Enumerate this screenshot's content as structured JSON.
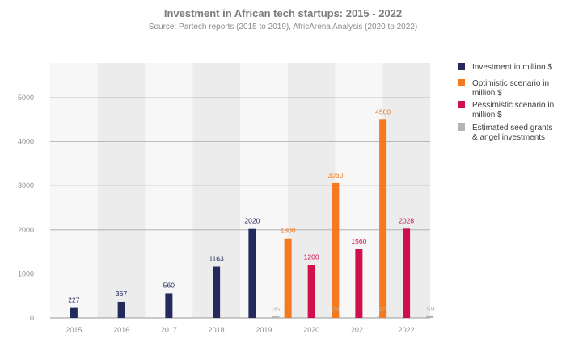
{
  "chart_data": {
    "type": "bar",
    "title": "Investment in African tech startups: 2015 - 2022",
    "subtitle": "Source: Partech reports (2015 to 2019), AfricArena Analysis (2020 to 2022)",
    "xlabel": "",
    "ylabel": "",
    "ylim": [
      0,
      5000
    ],
    "yticks": [
      0,
      1000,
      2000,
      3000,
      4000,
      5000
    ],
    "grid": true,
    "legend_position": "right",
    "categories": [
      "2015",
      "2016",
      "2017",
      "2018",
      "2019",
      "2020",
      "2021",
      "2022"
    ],
    "series": [
      {
        "name": "Investment in million $",
        "color": "#252a5c",
        "values": [
          227,
          367,
          560,
          1163,
          2020,
          null,
          null,
          null
        ],
        "labels": [
          "227",
          "367",
          "560",
          "1163",
          "2020",
          null,
          null,
          null
        ]
      },
      {
        "name": "Optimistic scenario in million $",
        "color": "#f47a20",
        "values": [
          null,
          null,
          null,
          null,
          null,
          1800,
          3060,
          4500
        ],
        "labels": [
          null,
          null,
          null,
          null,
          null,
          "1800",
          "3060",
          "4500"
        ]
      },
      {
        "name": "Pessimistic scenario in million $",
        "color": "#d0104c",
        "values": [
          null,
          null,
          null,
          null,
          null,
          1200,
          1560,
          2028
        ],
        "labels": [
          null,
          null,
          null,
          null,
          null,
          "1200",
          "1560",
          "2028"
        ]
      },
      {
        "name": "Estimated seed grants & angel investments",
        "color": "#b4b4b4",
        "values": [
          null,
          null,
          null,
          null,
          35,
          23,
          45,
          59
        ],
        "labels": [
          null,
          null,
          null,
          null,
          "35",
          "23",
          "45",
          "59"
        ]
      }
    ]
  }
}
